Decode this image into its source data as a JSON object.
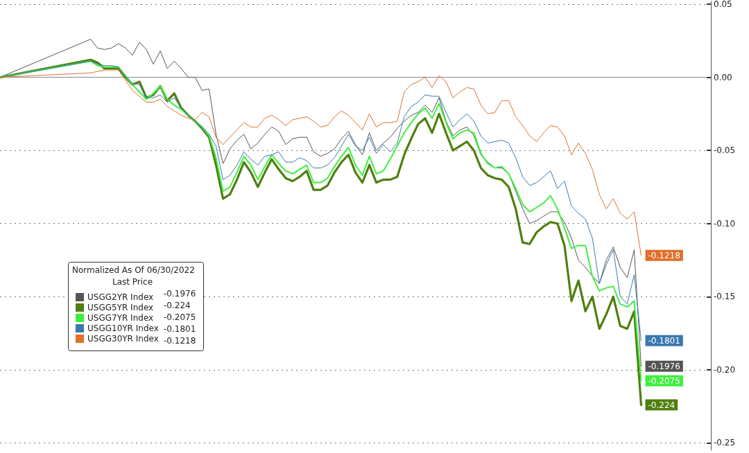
{
  "chart_data": {
    "type": "line",
    "legend_title": "Normalized As Of 06/30/2022",
    "annotations": [
      "Last Price"
    ],
    "categories": [
      null,
      null,
      null,
      null,
      null,
      null,
      null,
      null,
      null,
      null,
      null,
      null,
      null,
      null,
      null,
      null,
      null,
      null,
      null,
      null,
      null,
      null,
      null,
      null,
      null,
      null,
      null,
      null,
      null,
      null,
      null,
      null,
      null,
      null,
      null,
      null,
      null,
      null,
      null,
      null,
      null,
      null,
      null,
      null,
      null,
      null,
      null,
      null,
      null,
      null,
      null,
      null,
      null,
      null,
      null,
      null,
      null,
      null,
      null,
      null,
      null,
      null,
      null,
      null,
      null,
      null,
      null,
      null,
      null,
      null,
      null,
      null,
      null,
      null,
      null,
      null,
      null,
      null,
      null,
      null,
      null,
      null,
      null,
      null,
      null,
      null,
      null,
      null,
      null,
      null,
      null,
      null,
      null,
      null,
      null,
      null,
      null,
      null,
      null,
      null,
      null,
      null,
      null
    ],
    "ylim": [
      -0.255,
      0.052
    ],
    "yticks": [
      0.05,
      {
        "value": 0,
        "label": "0.00"
      },
      -0.05,
      {
        "value": -0.1,
        "label": "-0.10"
      },
      -0.15,
      {
        "value": -0.2,
        "label": "-0.20"
      },
      -0.25
    ],
    "tick_labels": "y",
    "grid": "y",
    "legend": "left",
    "marker": "none",
    "line_style": "solid",
    "series": [
      {
        "name": "USGG2YR Index",
        "color": "#555555",
        "values": [
          0,
          null,
          null,
          null,
          null,
          null,
          null,
          null,
          null,
          null,
          null,
          null,
          null,
          0.026,
          0.02,
          0.019,
          0.02,
          0.023,
          0.02,
          0.015,
          0.024,
          0.019,
          0.009,
          0.018,
          0.006,
          0.011,
          0.006,
          0,
          0,
          -0.009,
          -0.008,
          -0.039,
          -0.059,
          -0.049,
          -0.043,
          -0.039,
          -0.049,
          -0.045,
          -0.039,
          -0.034,
          -0.037,
          -0.046,
          -0.042,
          -0.041,
          -0.041,
          -0.051,
          -0.054,
          -0.052,
          -0.049,
          -0.042,
          -0.037,
          -0.046,
          -0.053,
          -0.038,
          -0.05,
          -0.045,
          -0.041,
          -0.035,
          -0.03,
          -0.026,
          -0.024,
          -0.019,
          -0.024,
          -0.014,
          -0.03,
          -0.04,
          -0.036,
          -0.034,
          -0.04,
          -0.053,
          -0.058,
          -0.062,
          -0.062,
          -0.066,
          -0.078,
          -0.09,
          -0.1,
          -0.098,
          -0.095,
          -0.092,
          -0.092,
          -0.099,
          -0.11,
          -0.125,
          -0.13,
          -0.136,
          -0.141,
          -0.125,
          -0.116,
          -0.13,
          -0.137,
          -0.118,
          -0.1976,
          null,
          null,
          null,
          null,
          null,
          null,
          null,
          null,
          null,
          null
        ],
        "value_labels": [
          null,
          null,
          null,
          null,
          null,
          null,
          null,
          null,
          null,
          null,
          null,
          null,
          null,
          null,
          null,
          null,
          null,
          null,
          null,
          null,
          null,
          null,
          null,
          null,
          null,
          null,
          null,
          null,
          null,
          null,
          null,
          null,
          null,
          null,
          null,
          null,
          null,
          null,
          null,
          null,
          null,
          null,
          null,
          null,
          null,
          null,
          null,
          null,
          null,
          null,
          null,
          null,
          null,
          null,
          null,
          null,
          null,
          null,
          null,
          null,
          null,
          null,
          null,
          null,
          null,
          null,
          null,
          null,
          null,
          null,
          null,
          null,
          null,
          null,
          null,
          null,
          null,
          null,
          null,
          null,
          null,
          null,
          null,
          null,
          null,
          null,
          null,
          null,
          null,
          null,
          null,
          null,
          "-0.1976",
          null,
          null,
          null,
          null,
          null,
          null,
          null,
          null,
          null,
          null
        ]
      },
      {
        "name": "USGG5YR Index",
        "color": "#4f7f0f",
        "values": [
          0,
          null,
          null,
          null,
          null,
          null,
          null,
          null,
          null,
          null,
          null,
          null,
          null,
          0.012,
          0.01,
          0.006,
          0.006,
          0.006,
          0,
          -0.005,
          -0.003,
          -0.014,
          -0.012,
          -0.006,
          -0.016,
          -0.011,
          -0.021,
          -0.026,
          -0.03,
          -0.035,
          -0.041,
          -0.06,
          -0.083,
          -0.08,
          -0.07,
          -0.058,
          -0.065,
          -0.075,
          -0.065,
          -0.056,
          -0.063,
          -0.069,
          -0.071,
          -0.068,
          -0.064,
          -0.077,
          -0.077,
          -0.074,
          -0.065,
          -0.058,
          -0.053,
          -0.065,
          -0.072,
          -0.06,
          -0.072,
          -0.07,
          -0.07,
          -0.068,
          -0.053,
          -0.042,
          -0.032,
          -0.028,
          -0.038,
          -0.025,
          -0.038,
          -0.05,
          -0.047,
          -0.044,
          -0.05,
          -0.062,
          -0.067,
          -0.069,
          -0.07,
          -0.075,
          -0.09,
          -0.113,
          -0.114,
          -0.106,
          -0.102,
          -0.099,
          -0.1,
          -0.115,
          -0.153,
          -0.139,
          -0.16,
          -0.15,
          -0.172,
          -0.162,
          -0.15,
          -0.17,
          -0.172,
          -0.16,
          -0.224,
          null,
          null,
          null,
          null,
          null,
          null,
          null,
          null,
          null,
          null
        ],
        "value_labels": [
          null,
          null,
          null,
          null,
          null,
          null,
          null,
          null,
          null,
          null,
          null,
          null,
          null,
          null,
          null,
          null,
          null,
          null,
          null,
          null,
          null,
          null,
          null,
          null,
          null,
          null,
          null,
          null,
          null,
          null,
          null,
          null,
          null,
          null,
          null,
          null,
          null,
          null,
          null,
          null,
          null,
          null,
          null,
          null,
          null,
          null,
          null,
          null,
          null,
          null,
          null,
          null,
          null,
          null,
          null,
          null,
          null,
          null,
          null,
          null,
          null,
          null,
          null,
          null,
          null,
          null,
          null,
          null,
          null,
          null,
          null,
          null,
          null,
          null,
          null,
          null,
          null,
          null,
          null,
          null,
          null,
          null,
          null,
          null,
          null,
          null,
          null,
          null,
          null,
          null,
          null,
          null,
          "-0.224",
          null,
          null,
          null,
          null,
          null,
          null,
          null,
          null,
          null,
          null
        ]
      },
      {
        "name": "USGG7YR Index",
        "color": "#3ef03e",
        "values": [
          0,
          null,
          null,
          null,
          null,
          null,
          null,
          null,
          null,
          null,
          null,
          null,
          null,
          0.011,
          0.008,
          0.007,
          0.007,
          0.007,
          0.001,
          -0.005,
          -0.01,
          -0.015,
          -0.011,
          -0.006,
          -0.015,
          -0.019,
          -0.022,
          -0.026,
          -0.03,
          -0.034,
          -0.04,
          -0.055,
          -0.078,
          -0.075,
          -0.065,
          -0.054,
          -0.06,
          -0.07,
          -0.061,
          -0.053,
          -0.059,
          -0.064,
          -0.066,
          -0.063,
          -0.06,
          -0.072,
          -0.072,
          -0.069,
          -0.061,
          -0.054,
          -0.048,
          -0.06,
          -0.067,
          -0.054,
          -0.066,
          -0.064,
          -0.056,
          -0.047,
          -0.038,
          -0.031,
          -0.025,
          -0.021,
          -0.028,
          -0.018,
          -0.031,
          -0.042,
          -0.038,
          -0.036,
          -0.038,
          -0.052,
          -0.059,
          -0.062,
          -0.061,
          -0.066,
          -0.076,
          -0.087,
          -0.092,
          -0.089,
          -0.086,
          -0.081,
          -0.09,
          -0.103,
          -0.117,
          -0.115,
          -0.115,
          -0.136,
          -0.146,
          -0.144,
          -0.143,
          -0.155,
          -0.157,
          -0.153,
          -0.2075,
          null,
          null,
          null,
          null,
          null,
          null,
          null,
          null,
          null,
          null
        ],
        "value_labels": [
          null,
          null,
          null,
          null,
          null,
          null,
          null,
          null,
          null,
          null,
          null,
          null,
          null,
          null,
          null,
          null,
          null,
          null,
          null,
          null,
          null,
          null,
          null,
          null,
          null,
          null,
          null,
          null,
          null,
          null,
          null,
          null,
          null,
          null,
          null,
          null,
          null,
          null,
          null,
          null,
          null,
          null,
          null,
          null,
          null,
          null,
          null,
          null,
          null,
          null,
          null,
          null,
          null,
          null,
          null,
          null,
          null,
          null,
          null,
          null,
          null,
          null,
          null,
          null,
          null,
          null,
          null,
          null,
          null,
          null,
          null,
          null,
          null,
          null,
          null,
          null,
          null,
          null,
          null,
          null,
          null,
          null,
          null,
          null,
          null,
          null,
          null,
          null,
          null,
          null,
          null,
          null,
          "-0.2075",
          null,
          null,
          null,
          null,
          null,
          null,
          null,
          null,
          null,
          null
        ]
      },
      {
        "name": "USGG10YR Index",
        "color": "#3a78b0",
        "values": [
          0,
          null,
          null,
          null,
          null,
          null,
          null,
          null,
          null,
          null,
          null,
          null,
          null,
          0.011,
          0.009,
          0.008,
          0.008,
          0.007,
          0.001,
          -0.004,
          -0.005,
          -0.014,
          -0.014,
          -0.012,
          -0.017,
          -0.014,
          -0.021,
          -0.026,
          -0.03,
          -0.034,
          -0.039,
          -0.047,
          -0.07,
          -0.067,
          -0.06,
          -0.051,
          -0.056,
          -0.06,
          -0.054,
          -0.053,
          -0.051,
          -0.058,
          -0.058,
          -0.055,
          -0.057,
          -0.062,
          -0.062,
          -0.06,
          -0.055,
          -0.047,
          -0.039,
          -0.047,
          -0.05,
          -0.041,
          -0.052,
          -0.046,
          -0.051,
          -0.045,
          -0.027,
          -0.02,
          -0.017,
          -0.012,
          -0.013,
          -0.013,
          -0.024,
          -0.034,
          -0.029,
          -0.025,
          -0.03,
          -0.04,
          -0.045,
          -0.044,
          -0.043,
          -0.045,
          -0.055,
          -0.068,
          -0.074,
          -0.072,
          -0.068,
          -0.064,
          -0.076,
          -0.071,
          -0.088,
          -0.093,
          -0.097,
          -0.11,
          -0.141,
          -0.128,
          -0.118,
          -0.15,
          -0.155,
          -0.135,
          -0.1801,
          null,
          null,
          null,
          null,
          null,
          null,
          null,
          null,
          null,
          null
        ],
        "value_labels": [
          null,
          null,
          null,
          null,
          null,
          null,
          null,
          null,
          null,
          null,
          null,
          null,
          null,
          null,
          null,
          null,
          null,
          null,
          null,
          null,
          null,
          null,
          null,
          null,
          null,
          null,
          null,
          null,
          null,
          null,
          null,
          null,
          null,
          null,
          null,
          null,
          null,
          null,
          null,
          null,
          null,
          null,
          null,
          null,
          null,
          null,
          null,
          null,
          null,
          null,
          null,
          null,
          null,
          null,
          null,
          null,
          null,
          null,
          null,
          null,
          null,
          null,
          null,
          null,
          null,
          null,
          null,
          null,
          null,
          null,
          null,
          null,
          null,
          null,
          null,
          null,
          null,
          null,
          null,
          null,
          null,
          null,
          null,
          null,
          null,
          null,
          null,
          null,
          null,
          null,
          null,
          null,
          "-0.1801",
          null,
          null,
          null,
          null,
          null,
          null,
          null,
          null,
          null,
          null
        ]
      },
      {
        "name": "USGG30YR Index",
        "color": "#e0702a",
        "values": [
          0,
          null,
          null,
          null,
          null,
          null,
          null,
          null,
          null,
          null,
          null,
          null,
          null,
          0.003,
          0.004,
          0.005,
          0.005,
          0.005,
          -0.002,
          -0.009,
          -0.013,
          -0.017,
          -0.017,
          -0.015,
          -0.02,
          -0.023,
          -0.026,
          -0.028,
          -0.029,
          -0.024,
          -0.027,
          -0.041,
          -0.046,
          -0.041,
          -0.036,
          -0.031,
          -0.034,
          -0.034,
          -0.028,
          -0.026,
          -0.029,
          -0.033,
          -0.029,
          -0.028,
          -0.027,
          -0.03,
          -0.034,
          -0.033,
          -0.027,
          -0.023,
          -0.026,
          -0.031,
          -0.036,
          -0.025,
          -0.034,
          -0.031,
          -0.031,
          -0.03,
          -0.01,
          -0.005,
          -0.003,
          0,
          -0.007,
          0.001,
          -0.003,
          -0.014,
          -0.01,
          -0.007,
          -0.008,
          -0.019,
          -0.025,
          -0.024,
          -0.016,
          -0.016,
          -0.027,
          -0.033,
          -0.04,
          -0.044,
          -0.038,
          -0.033,
          -0.034,
          -0.04,
          -0.053,
          -0.045,
          -0.052,
          -0.063,
          -0.08,
          -0.09,
          -0.083,
          -0.093,
          -0.097,
          -0.092,
          -0.1218,
          null,
          null,
          null,
          null,
          null,
          null,
          null,
          null,
          null,
          null
        ],
        "value_labels": [
          null,
          null,
          null,
          null,
          null,
          null,
          null,
          null,
          null,
          null,
          null,
          null,
          null,
          null,
          null,
          null,
          null,
          null,
          null,
          null,
          null,
          null,
          null,
          null,
          null,
          null,
          null,
          null,
          null,
          null,
          null,
          null,
          null,
          null,
          null,
          null,
          null,
          null,
          null,
          null,
          null,
          null,
          null,
          null,
          null,
          null,
          null,
          null,
          null,
          null,
          null,
          null,
          null,
          null,
          null,
          null,
          null,
          null,
          null,
          null,
          null,
          null,
          null,
          null,
          null,
          null,
          null,
          null,
          null,
          null,
          null,
          null,
          null,
          null,
          null,
          null,
          null,
          null,
          null,
          null,
          null,
          null,
          null,
          null,
          null,
          null,
          null,
          null,
          null,
          null,
          null,
          null,
          "-0.1218",
          null,
          null,
          null,
          null,
          null,
          null,
          null,
          null,
          null,
          null
        ]
      }
    ]
  }
}
